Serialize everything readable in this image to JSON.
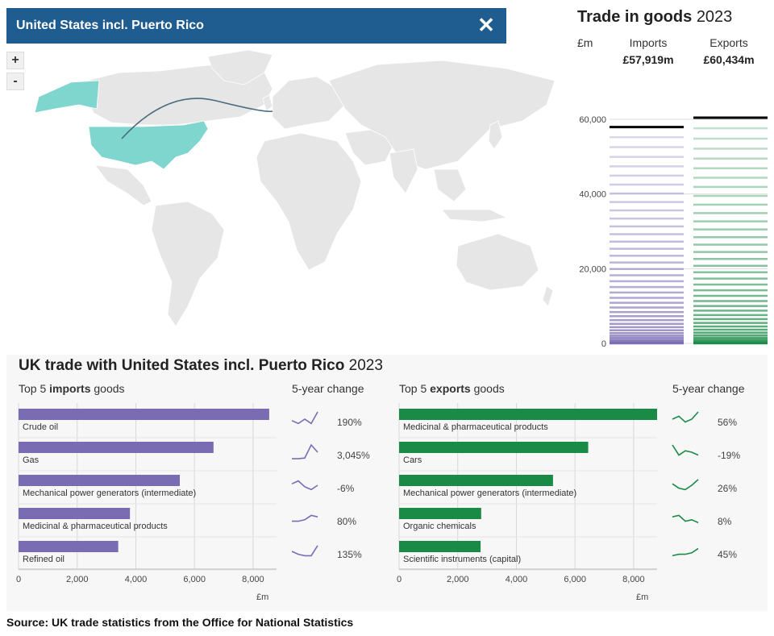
{
  "header": {
    "country": "United States incl. Puerto Rico",
    "close_icon": "close-icon"
  },
  "zoom": {
    "in_label": "+",
    "out_label": "-"
  },
  "colors": {
    "bar_blue": "#1f5d91",
    "selected_country": "#7fd6cf",
    "land": "#e6e6e6",
    "flow_line": "#4a6b80",
    "imports": "#7a6cb3",
    "exports": "#1a8a47"
  },
  "trade_in_goods": {
    "title_bold": "Trade in goods",
    "year": "2023",
    "unit": "£m",
    "imports_label": "Imports",
    "exports_label": "Exports",
    "imports_total": "£57,919m",
    "exports_total": "£60,434m",
    "axis_ticks": [
      "60,000",
      "40,000",
      "20,000",
      "0"
    ],
    "chart_data": {
      "type": "bar",
      "categories": [
        "Imports",
        "Exports"
      ],
      "values": [
        57919,
        60434
      ],
      "ylim": [
        0,
        60000
      ]
    }
  },
  "bottom": {
    "title_bold": "UK trade with United States incl. Puerto Rico",
    "year": "2023",
    "imports_head_pre": "Top 5",
    "imports_head_bold": "imports",
    "imports_head_post": "goods",
    "exports_head_pre": "Top 5",
    "exports_head_bold": "exports",
    "exports_head_post": "goods",
    "change_head": "5-year change",
    "x_ticks": [
      "0",
      "2,000",
      "4,000",
      "6,000",
      "8,000"
    ],
    "unit": "£m"
  },
  "chart_data": [
    {
      "type": "bar",
      "title": "Top 5 imports goods",
      "categories": [
        "Crude oil",
        "Gas",
        "Mechanical power generators (intermediate)",
        "Medicinal & pharmaceutical products",
        "Refined oil"
      ],
      "values": [
        8550,
        6650,
        5500,
        3800,
        3400
      ],
      "change": [
        "190%",
        "3,045%",
        "-6%",
        "80%",
        "135%"
      ],
      "sparklines": [
        [
          0.4,
          0.2,
          0.5,
          0.2,
          1.0
        ],
        [
          0.05,
          0.05,
          0.1,
          1.0,
          0.5
        ],
        [
          0.6,
          0.8,
          0.4,
          0.2,
          0.5
        ],
        [
          0.3,
          0.3,
          0.4,
          0.7,
          0.6
        ],
        [
          0.5,
          0.3,
          0.2,
          0.2,
          0.9
        ]
      ],
      "xlim": [
        0,
        8800
      ],
      "xlabel": "£m"
    },
    {
      "type": "bar",
      "title": "Top 5 exports goods",
      "categories": [
        "Medicinal & pharmaceutical products",
        "Cars",
        "Mechanical power generators (intermediate)",
        "Organic chemicals",
        "Scientific instruments (capital)"
      ],
      "values": [
        8800,
        6450,
        5250,
        2800,
        2780
      ],
      "change": [
        "56%",
        "-19%",
        "26%",
        "8%",
        "45%"
      ],
      "sparklines": [
        [
          0.5,
          0.7,
          0.3,
          0.5,
          1.0
        ],
        [
          1.0,
          0.3,
          0.6,
          0.5,
          0.3
        ],
        [
          0.6,
          0.3,
          0.2,
          0.5,
          0.9
        ],
        [
          0.6,
          0.7,
          0.3,
          0.4,
          0.2
        ],
        [
          0.2,
          0.3,
          0.3,
          0.4,
          0.7
        ]
      ],
      "xlim": [
        0,
        8800
      ],
      "xlabel": "£m"
    }
  ],
  "source": "Source: UK trade statistics from the Office for National Statistics"
}
